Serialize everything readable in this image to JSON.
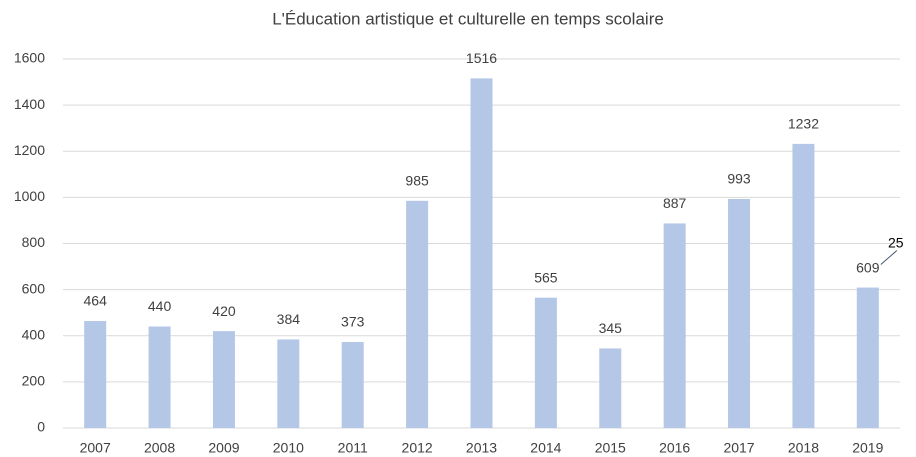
{
  "chart_data": {
    "type": "bar",
    "title": "L'Éducation artistique et culturelle en temps scolaire",
    "categories": [
      "2007",
      "2008",
      "2009",
      "2010",
      "2011",
      "2012",
      "2013",
      "2014",
      "2015",
      "2016",
      "2017",
      "2018",
      "2019"
    ],
    "values": [
      464,
      440,
      420,
      384,
      373,
      985,
      1516,
      565,
      345,
      887,
      993,
      1232,
      609
    ],
    "color": "#b4c7e7",
    "ylim": [
      0,
      1600
    ],
    "yticks": [
      0,
      200,
      400,
      600,
      800,
      1000,
      1200,
      1400,
      1600
    ],
    "grid": true,
    "annotations": [
      {
        "text": "25"
      }
    ]
  }
}
